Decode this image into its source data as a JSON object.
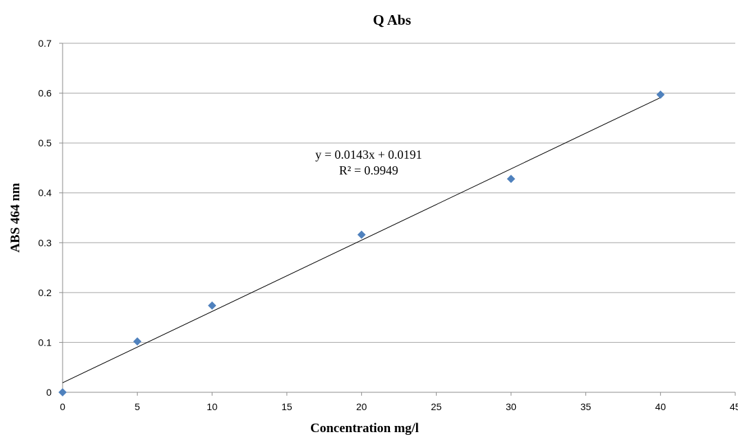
{
  "chart_data": {
    "type": "scatter",
    "title": "Q Abs",
    "xlabel": "Concentration mg/l",
    "ylabel": "ABS 464 nm",
    "xlim": [
      0,
      45
    ],
    "ylim": [
      0,
      0.7
    ],
    "x_ticks": [
      "0",
      "5",
      "10",
      "15",
      "20",
      "25",
      "30",
      "35",
      "40",
      "45"
    ],
    "y_ticks": [
      "0",
      "0.1",
      "0.2",
      "0.3",
      "0.4",
      "0.5",
      "0.6",
      "0.7"
    ],
    "grid": true,
    "legend": "none",
    "series": [
      {
        "x": [
          0,
          5,
          10,
          20,
          30,
          40
        ],
        "y": [
          0,
          0.102,
          0.174,
          0.316,
          0.428,
          0.597
        ],
        "color": "#4f81bd",
        "marker": "diamond"
      }
    ],
    "trendline": {
      "slope": 0.0143,
      "intercept": 0.0191,
      "x_range": [
        0,
        40
      ],
      "color": "#000000"
    },
    "annotations": [
      {
        "text": "y = 0.0143x + 0.0191"
      },
      {
        "text": "R² = 0.9949"
      }
    ]
  }
}
